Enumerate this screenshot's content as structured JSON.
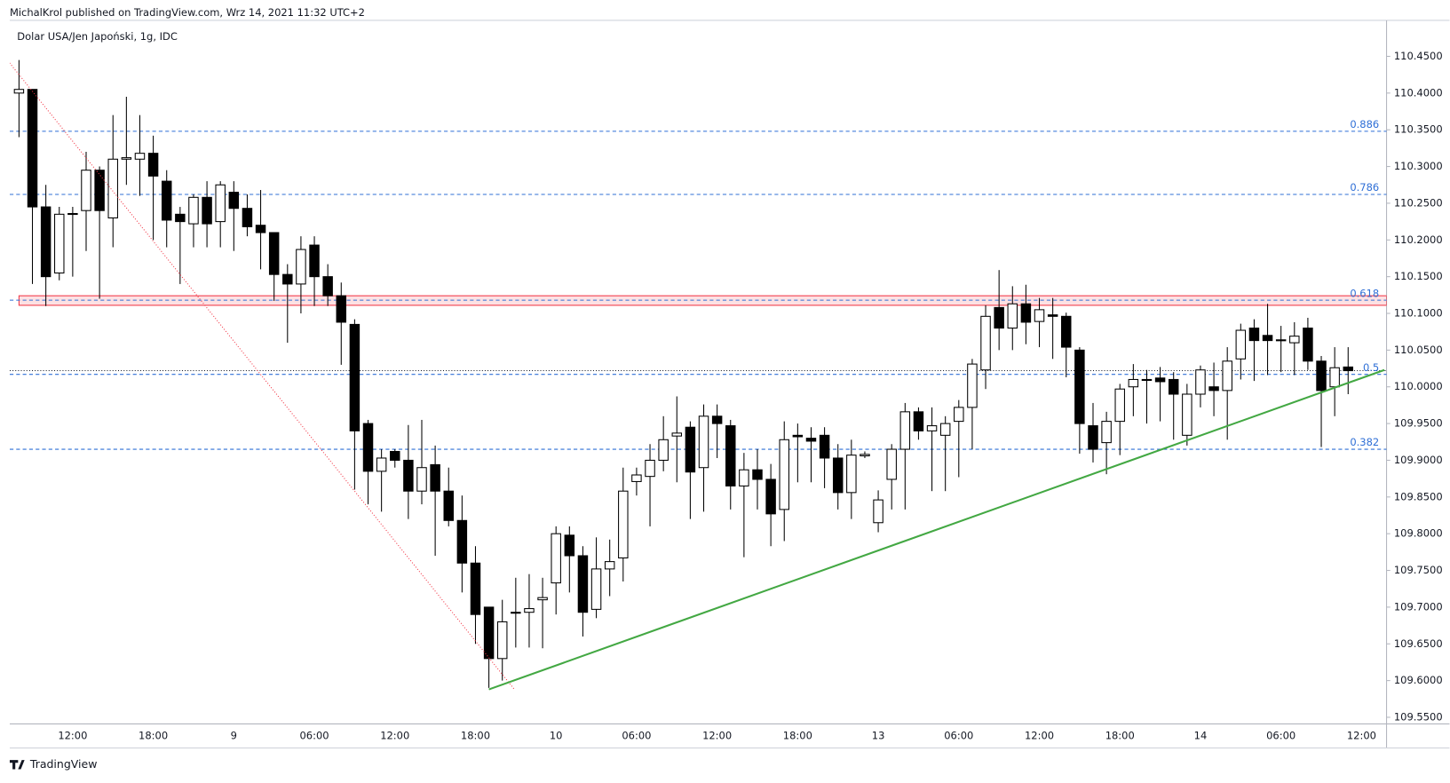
{
  "header": {
    "published": "MichalKrol published on TradingView.com, Wrz 14, 2021 11:32 UTC+2",
    "brand": "TradingView"
  },
  "chart_data": {
    "type": "candlestick",
    "title": "Dolar USA/Jen Japoński, 1g, IDC",
    "up_color": "#ffffff",
    "down_color": "#000000",
    "border_color": "#000000",
    "categories": [
      null,
      null,
      null,
      null,
      "12:00",
      null,
      null,
      null,
      null,
      null,
      "18:00",
      null,
      null,
      null,
      null,
      null,
      "9",
      null,
      null,
      null,
      null,
      null,
      "06:00",
      null,
      null,
      null,
      null,
      null,
      "12:00",
      null,
      null,
      null,
      null,
      null,
      "18:00",
      null,
      null,
      null,
      null,
      null,
      "10",
      null,
      null,
      null,
      null,
      null,
      "06:00",
      null,
      null,
      null,
      null,
      null,
      "12:00",
      null,
      null,
      null,
      null,
      null,
      "18:00",
      null,
      null,
      null,
      null,
      null,
      "13",
      null,
      null,
      null,
      null,
      null,
      "06:00",
      null,
      null,
      null,
      null,
      null,
      "12:00",
      null,
      null,
      null,
      null,
      null,
      "18:00",
      null,
      null,
      null,
      null,
      null,
      "14",
      null,
      null,
      null,
      null,
      null,
      "06:00",
      null,
      null,
      null,
      null,
      null,
      "12:00"
    ],
    "open": [
      110.4,
      110.405,
      110.245,
      110.155,
      110.235,
      110.24,
      110.295,
      110.23,
      110.31,
      110.31,
      110.318,
      110.28,
      110.235,
      110.222,
      110.258,
      110.225,
      110.265,
      110.243,
      110.22,
      110.21,
      110.153,
      110.14,
      110.193,
      110.15,
      110.124,
      110.085,
      109.95,
      109.885,
      109.912,
      109.9,
      109.858,
      109.894,
      109.858,
      109.818,
      109.76,
      109.7,
      109.63,
      109.692,
      109.693,
      109.71,
      109.733,
      109.798,
      109.77,
      109.697,
      109.752,
      109.767,
      109.871,
      109.878,
      109.9,
      109.933,
      109.945,
      109.89,
      109.96,
      109.947,
      109.865,
      109.887,
      109.874,
      109.833,
      109.934,
      109.93,
      109.934,
      109.903,
      109.856,
      109.906,
      109.815,
      109.874,
      109.915,
      109.966,
      109.94,
      109.934,
      109.953,
      109.972,
      110.023,
      110.108,
      110.08,
      110.113,
      110.089,
      110.098,
      110.096,
      110.05,
      109.947,
      109.924,
      109.953,
      110.0,
      110.01,
      110.012,
      110.01,
      109.934,
      109.99,
      110.0,
      109.995,
      110.038,
      110.08,
      110.07,
      110.063,
      110.06,
      110.08,
      110.035,
      110.0,
      110.027,
      null
    ],
    "high": [
      110.445,
      110.405,
      110.275,
      110.245,
      110.245,
      110.32,
      110.3,
      110.37,
      110.395,
      110.37,
      110.342,
      110.295,
      110.245,
      110.262,
      110.28,
      110.28,
      110.28,
      110.262,
      110.268,
      110.21,
      110.167,
      110.205,
      110.205,
      110.167,
      110.142,
      110.092,
      109.955,
      109.915,
      109.915,
      109.948,
      109.955,
      109.92,
      109.89,
      109.852,
      109.783,
      109.7,
      109.71,
      109.74,
      109.745,
      109.74,
      109.81,
      109.81,
      109.783,
      109.795,
      109.792,
      109.89,
      109.89,
      109.922,
      109.96,
      109.987,
      109.953,
      109.976,
      109.976,
      109.955,
      109.91,
      109.915,
      109.895,
      109.953,
      109.95,
      109.945,
      109.945,
      109.922,
      109.928,
      109.912,
      109.859,
      109.922,
      109.978,
      109.972,
      109.972,
      109.96,
      109.982,
      110.038,
      110.111,
      110.159,
      110.137,
      110.139,
      110.121,
      110.121,
      110.101,
      110.054,
      109.978,
      109.966,
      110.004,
      110.031,
      110.023,
      110.027,
      110.02,
      110.004,
      110.029,
      110.033,
      110.054,
      110.086,
      110.092,
      110.113,
      110.083,
      110.088,
      110.094,
      110.042,
      110.054,
      110.054,
      null
    ],
    "low": [
      110.34,
      110.14,
      110.11,
      110.145,
      110.15,
      110.185,
      110.12,
      110.19,
      110.275,
      110.26,
      110.2,
      110.19,
      110.14,
      110.19,
      110.19,
      110.19,
      110.185,
      110.205,
      110.16,
      110.117,
      110.06,
      110.1,
      110.11,
      110.11,
      110.03,
      109.86,
      109.84,
      109.83,
      109.89,
      109.82,
      109.84,
      109.77,
      109.81,
      109.72,
      109.65,
      109.59,
      109.6,
      109.645,
      109.645,
      109.644,
      109.69,
      109.72,
      109.66,
      109.685,
      109.715,
      109.735,
      109.852,
      109.81,
      109.885,
      109.87,
      109.82,
      109.83,
      109.903,
      109.833,
      109.768,
      109.833,
      109.783,
      109.79,
      109.87,
      109.87,
      109.862,
      109.833,
      109.82,
      109.903,
      109.802,
      109.833,
      109.833,
      109.928,
      109.858,
      109.858,
      109.877,
      109.915,
      109.997,
      110.05,
      110.05,
      110.058,
      110.054,
      110.038,
      110.013,
      109.909,
      109.897,
      109.881,
      109.907,
      109.96,
      109.95,
      109.953,
      109.928,
      109.92,
      109.972,
      109.96,
      109.928,
      110.01,
      110.008,
      110.016,
      110.02,
      110.016,
      110.023,
      109.918,
      109.96,
      109.99,
      null
    ],
    "close": [
      110.405,
      110.245,
      110.15,
      110.235,
      110.236,
      110.295,
      110.24,
      110.31,
      110.312,
      110.318,
      110.287,
      110.227,
      110.225,
      110.258,
      110.222,
      110.275,
      110.243,
      110.218,
      110.21,
      110.153,
      110.14,
      110.187,
      110.15,
      110.124,
      110.088,
      109.94,
      109.885,
      109.903,
      109.9,
      109.858,
      109.89,
      109.858,
      109.818,
      109.76,
      109.69,
      109.63,
      109.68,
      109.693,
      109.698,
      109.713,
      109.8,
      109.77,
      109.693,
      109.752,
      109.762,
      109.858,
      109.88,
      109.9,
      109.928,
      109.937,
      109.884,
      109.96,
      109.95,
      109.865,
      109.887,
      109.874,
      109.827,
      109.928,
      109.932,
      109.926,
      109.903,
      109.856,
      109.907,
      109.908,
      109.846,
      109.915,
      109.966,
      109.94,
      109.947,
      109.95,
      109.972,
      110.031,
      110.096,
      110.08,
      110.113,
      110.088,
      110.105,
      110.096,
      110.054,
      109.95,
      109.915,
      109.953,
      109.997,
      110.01,
      110.01,
      110.007,
      109.99,
      109.99,
      110.023,
      109.995,
      110.035,
      110.077,
      110.063,
      110.063,
      110.064,
      110.069,
      110.035,
      109.995,
      110.026,
      110.022,
      null
    ],
    "ylim": [
      109.541,
      110.499
    ],
    "yticks": [
      {
        "value": 110.45,
        "label": "110.4500"
      },
      {
        "value": 110.4,
        "label": "110.4000"
      },
      {
        "value": 110.35,
        "label": "110.3500"
      },
      {
        "value": 110.3,
        "label": "110.3000"
      },
      {
        "value": 110.25,
        "label": "110.2500"
      },
      {
        "value": 110.2,
        "label": "110.2000"
      },
      {
        "value": 110.15,
        "label": "110.1500"
      },
      {
        "value": 110.1,
        "label": "110.1000"
      },
      {
        "value": 110.05,
        "label": "110.0500"
      },
      {
        "value": 110.0,
        "label": "110.0000"
      },
      {
        "value": 109.95,
        "label": "109.9500"
      },
      {
        "value": 109.9,
        "label": "109.9000"
      },
      {
        "value": 109.85,
        "label": "109.8500"
      },
      {
        "value": 109.8,
        "label": "109.8000"
      },
      {
        "value": 109.75,
        "label": "109.7500"
      },
      {
        "value": 109.7,
        "label": "109.7000"
      },
      {
        "value": 109.65,
        "label": "109.6500"
      },
      {
        "value": 109.6,
        "label": "109.6000"
      },
      {
        "value": 109.55,
        "label": "109.5500"
      }
    ],
    "fib_color": "#2f6fd6",
    "fib_levels": [
      {
        "label": "0.886",
        "value": 110.348
      },
      {
        "label": "0.786",
        "value": 110.262
      },
      {
        "label": "0.618",
        "value": 110.118
      },
      {
        "label": "0.5",
        "value": 110.017
      },
      {
        "label": "0.382",
        "value": 109.915
      }
    ],
    "zone": {
      "low": 110.111,
      "high": 110.124,
      "color": "#f23645"
    },
    "trendlines": [
      {
        "color": "#f23645",
        "style": "dotted",
        "points": [
          [
            -0.7,
            110.441
          ],
          [
            36.9,
            109.588
          ]
        ]
      },
      {
        "color": "#43a843",
        "style": "solid",
        "points": [
          [
            35,
            109.588
          ],
          [
            101.7,
            110.023
          ]
        ]
      }
    ]
  }
}
